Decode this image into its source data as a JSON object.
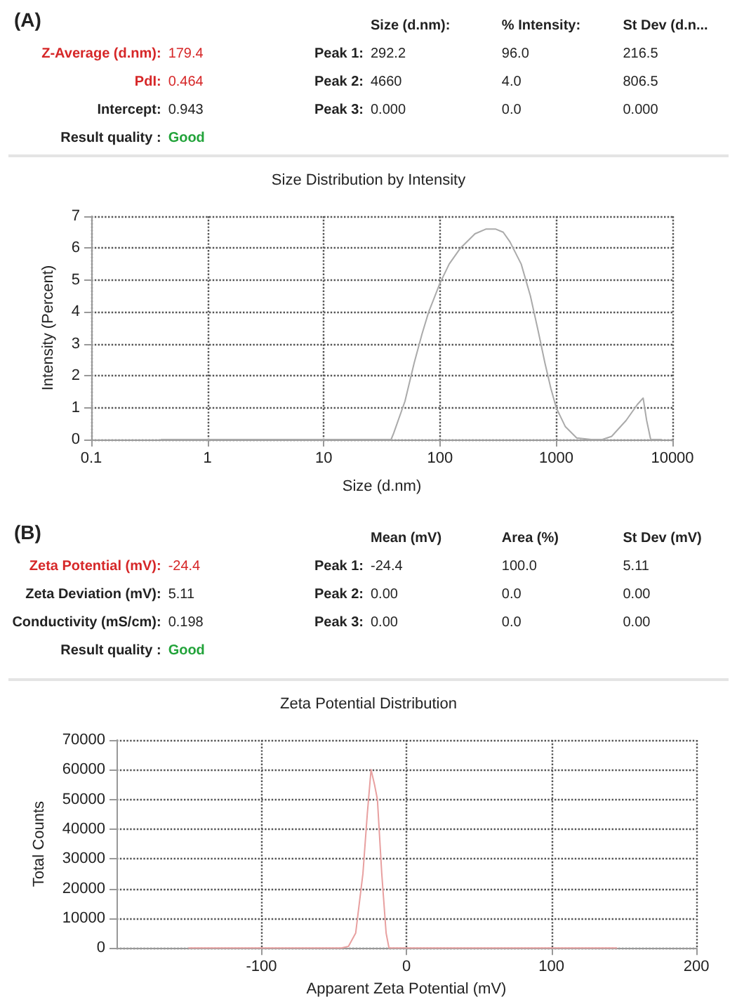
{
  "chart_data": [
    {
      "type": "other",
      "title": "(A)",
      "annotations": [
        "Size (d.nm):",
        "% Intensity:",
        "St Dev (d.n...",
        "Z-Average (d.nm):",
        "179.4",
        "Peak 1:",
        "292.2",
        "96.0",
        "216.5",
        "PdI:",
        "0.464",
        "Peak 2:",
        "4660",
        "4.0",
        "806.5",
        "Intercept:",
        "0.943",
        "Peak 3:",
        "0.000",
        "0.0",
        "0.000",
        "Result quality :",
        "Good"
      ]
    },
    {
      "type": "line",
      "title": "Size Distribution by Intensity",
      "xlabel": "Size (d.nm)",
      "ylabel": "Intensity (Percent)",
      "log": "x",
      "xlim": [
        0.1,
        10000
      ],
      "xticks": [
        0.1,
        1,
        10,
        100,
        1000,
        10000
      ],
      "ylim": [
        0,
        7
      ],
      "yticks": [
        0,
        1,
        2,
        3,
        4,
        5,
        6,
        7
      ],
      "grid": true,
      "marker": "none",
      "line_style": "solid",
      "series": [
        {
          "color": "#aaaaaa",
          "x": [
            0.4,
            1,
            10,
            38,
            40,
            50,
            60,
            70,
            80,
            100,
            120,
            150,
            200,
            250,
            300,
            350,
            400,
            500,
            600,
            700,
            800,
            900,
            1000,
            1200,
            1500,
            2000,
            2500,
            3000,
            4000,
            5000,
            5600,
            6000,
            6500,
            8000
          ],
          "values": [
            0,
            0,
            0,
            0,
            0.2,
            1.2,
            2.4,
            3.3,
            4.0,
            4.9,
            5.5,
            6.0,
            6.45,
            6.6,
            6.6,
            6.5,
            6.2,
            5.5,
            4.5,
            3.4,
            2.4,
            1.6,
            1.0,
            0.4,
            0.05,
            0,
            0,
            0.1,
            0.6,
            1.1,
            1.3,
            0.6,
            0,
            0
          ]
        }
      ]
    },
    {
      "type": "other",
      "title": "(B)",
      "annotations": [
        "Mean (mV)",
        "Area (%)",
        "St Dev (mV)",
        "Zeta Potential (mV):",
        "-24.4",
        "Peak 1:",
        "-24.4",
        "100.0",
        "5.11",
        "Zeta Deviation (mV):",
        "5.11",
        "Peak 2:",
        "0.00",
        "0.0",
        "0.00",
        "Conductivity (mS/cm):",
        "0.198",
        "Peak 3:",
        "0.00",
        "0.0",
        "0.00",
        "Result quality :",
        "Good"
      ]
    },
    {
      "type": "line",
      "title": "Zeta Potential Distribution",
      "xlabel": "Apparent Zeta Potential (mV)",
      "ylabel": "Total Counts",
      "xlim": [
        -200,
        200
      ],
      "xticks": [
        -100,
        0,
        100,
        200
      ],
      "ylim": [
        0,
        70000
      ],
      "yticks": [
        0,
        10000,
        20000,
        30000,
        40000,
        50000,
        60000,
        70000
      ],
      "grid": true,
      "marker": "none",
      "line_style": "solid",
      "series": [
        {
          "color": "#e8a0a0",
          "x": [
            -150,
            -100,
            -45,
            -40,
            -35,
            -30,
            -27,
            -24.4,
            -22,
            -20,
            -17,
            -14,
            -12,
            0,
            50,
            100,
            145
          ],
          "values": [
            0,
            0,
            0,
            500,
            5000,
            25000,
            45000,
            60000,
            55000,
            50000,
            25000,
            5000,
            0,
            0,
            0,
            0,
            0
          ]
        }
      ]
    }
  ]
}
